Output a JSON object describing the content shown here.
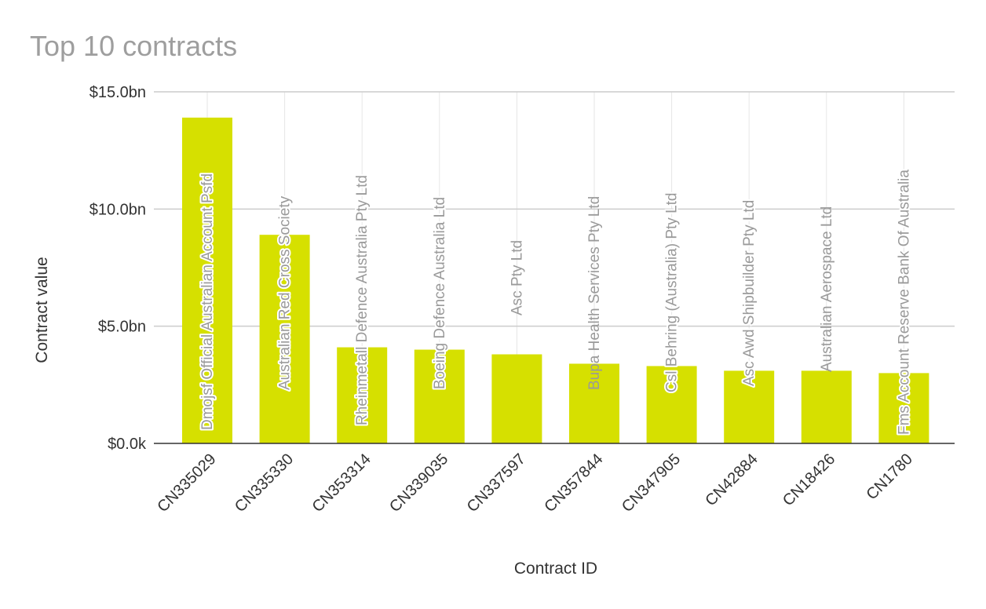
{
  "chart_data": {
    "type": "bar",
    "title": "Top 10 contracts",
    "xlabel": "Contract ID",
    "ylabel": "Contract value",
    "ylim": [
      0,
      15
    ],
    "yticks": [
      {
        "value": 0,
        "label": "$0.0k"
      },
      {
        "value": 5,
        "label": "$5.0bn"
      },
      {
        "value": 10,
        "label": "$10.0bn"
      },
      {
        "value": 15,
        "label": "$15.0bn"
      }
    ],
    "categories": [
      "CN335029",
      "CN335330",
      "CN353314",
      "CN339035",
      "CN337597",
      "CN357844",
      "CN347905",
      "CN42884",
      "CN18426",
      "CN1780"
    ],
    "values": [
      13.9,
      8.9,
      4.1,
      4.0,
      3.8,
      3.4,
      3.3,
      3.1,
      3.1,
      3.0
    ],
    "data_labels": [
      "Dmojsf Official Australian Account Psfd",
      "Australian Red Cross Society",
      "Rheinmetall Defence Australia Pty Ltd",
      "Boeing Defence Australia Ltd",
      "Asc Pty Ltd",
      "Bupa Health Services Pty Ltd",
      "Csl Behring (Australia) Pty Ltd",
      "Asc Awd Shipbuilder Pty Ltd",
      "Australian Aerospace Ltd",
      "Fms Account Reserve Bank Of Australia"
    ],
    "bar_color": "#d6e000",
    "grid": true,
    "legend": "none"
  }
}
